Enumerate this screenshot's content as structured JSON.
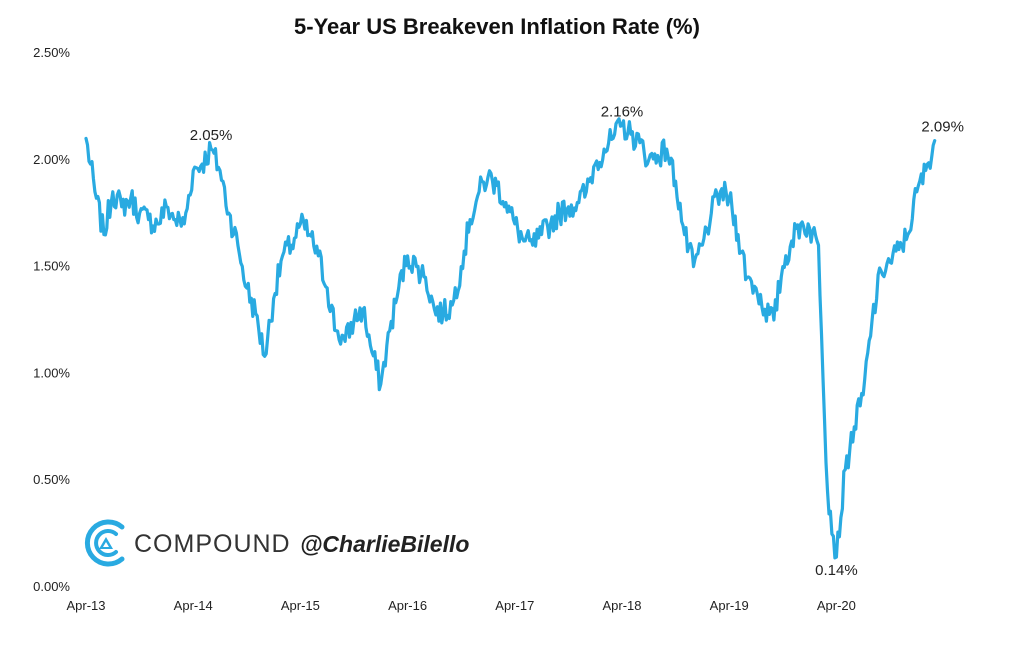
{
  "chart_data": {
    "type": "line",
    "title": "5-Year US Breakeven Inflation Rate (%)",
    "xlabel": "",
    "ylabel": "",
    "y_ticks": [
      "0.00%",
      "0.50%",
      "1.00%",
      "1.50%",
      "2.00%",
      "2.50%"
    ],
    "x_ticks": [
      "Apr-13",
      "Apr-14",
      "Apr-15",
      "Apr-16",
      "Apr-17",
      "Apr-18",
      "Apr-19",
      "Apr-20"
    ],
    "ylim": [
      0,
      2.5
    ],
    "xlim": [
      "2013-04",
      "2021-03"
    ],
    "grid": false,
    "line_color": "#29aae1",
    "series": [
      {
        "x": [
          "2013-04",
          "2013-05",
          "2013-06",
          "2013-07",
          "2013-08",
          "2013-09",
          "2013-10",
          "2013-11",
          "2013-12",
          "2014-01",
          "2014-02",
          "2014-03",
          "2014-04",
          "2014-05",
          "2014-06",
          "2014-07",
          "2014-08",
          "2014-09",
          "2014-10",
          "2014-11",
          "2014-12",
          "2015-01",
          "2015-02",
          "2015-03",
          "2015-04",
          "2015-05",
          "2015-06",
          "2015-07",
          "2015-08",
          "2015-09",
          "2015-10",
          "2015-11",
          "2015-12",
          "2016-01",
          "2016-02",
          "2016-03",
          "2016-04",
          "2016-05",
          "2016-06",
          "2016-07",
          "2016-08",
          "2016-09",
          "2016-10",
          "2016-11",
          "2016-12",
          "2017-01",
          "2017-02",
          "2017-03",
          "2017-04",
          "2017-05",
          "2017-06",
          "2017-07",
          "2017-08",
          "2017-09",
          "2017-10",
          "2017-11",
          "2017-12",
          "2018-01",
          "2018-02",
          "2018-03",
          "2018-04",
          "2018-05",
          "2018-06",
          "2018-07",
          "2018-08",
          "2018-09",
          "2018-10",
          "2018-11",
          "2018-12",
          "2019-01",
          "2019-02",
          "2019-03",
          "2019-04",
          "2019-05",
          "2019-06",
          "2019-07",
          "2019-08",
          "2019-09",
          "2019-10",
          "2019-11",
          "2019-12",
          "2020-01",
          "2020-02",
          "2020-03",
          "2020-04",
          "2020-05",
          "2020-06",
          "2020-07",
          "2020-08",
          "2020-09",
          "2020-10",
          "2020-11",
          "2020-12",
          "2021-01",
          "2021-02",
          "2021-03"
        ],
        "values": [
          2.1,
          1.85,
          1.65,
          1.85,
          1.78,
          1.82,
          1.75,
          1.72,
          1.7,
          1.78,
          1.72,
          1.7,
          1.95,
          1.98,
          2.05,
          1.95,
          1.75,
          1.6,
          1.4,
          1.28,
          1.08,
          1.35,
          1.55,
          1.6,
          1.7,
          1.65,
          1.55,
          1.4,
          1.2,
          1.15,
          1.25,
          1.3,
          1.1,
          0.95,
          1.2,
          1.4,
          1.55,
          1.5,
          1.45,
          1.3,
          1.28,
          1.32,
          1.5,
          1.72,
          1.85,
          1.92,
          1.88,
          1.8,
          1.7,
          1.62,
          1.6,
          1.65,
          1.7,
          1.75,
          1.78,
          1.8,
          1.85,
          1.98,
          2.05,
          2.1,
          2.16,
          2.12,
          2.08,
          2.0,
          2.02,
          2.05,
          1.9,
          1.65,
          1.5,
          1.6,
          1.75,
          1.85,
          1.82,
          1.65,
          1.45,
          1.4,
          1.3,
          1.25,
          1.5,
          1.62,
          1.7,
          1.68,
          1.6,
          0.45,
          0.14,
          0.55,
          0.75,
          0.9,
          1.25,
          1.48,
          1.52,
          1.58,
          1.65,
          1.85,
          1.95,
          2.09
        ]
      }
    ],
    "annotations": [
      {
        "x": "2014-06",
        "y": 2.05,
        "text": "2.05%"
      },
      {
        "x": "2018-04",
        "y": 2.16,
        "text": "2.16%"
      },
      {
        "x": "2020-04",
        "y": 0.14,
        "text": "0.14%"
      },
      {
        "x": "2021-03",
        "y": 2.09,
        "text": "2.09%"
      }
    ]
  },
  "branding": {
    "name": "COMPOUND",
    "handle": "@CharlieBilello",
    "logo_color": "#29aae1"
  }
}
